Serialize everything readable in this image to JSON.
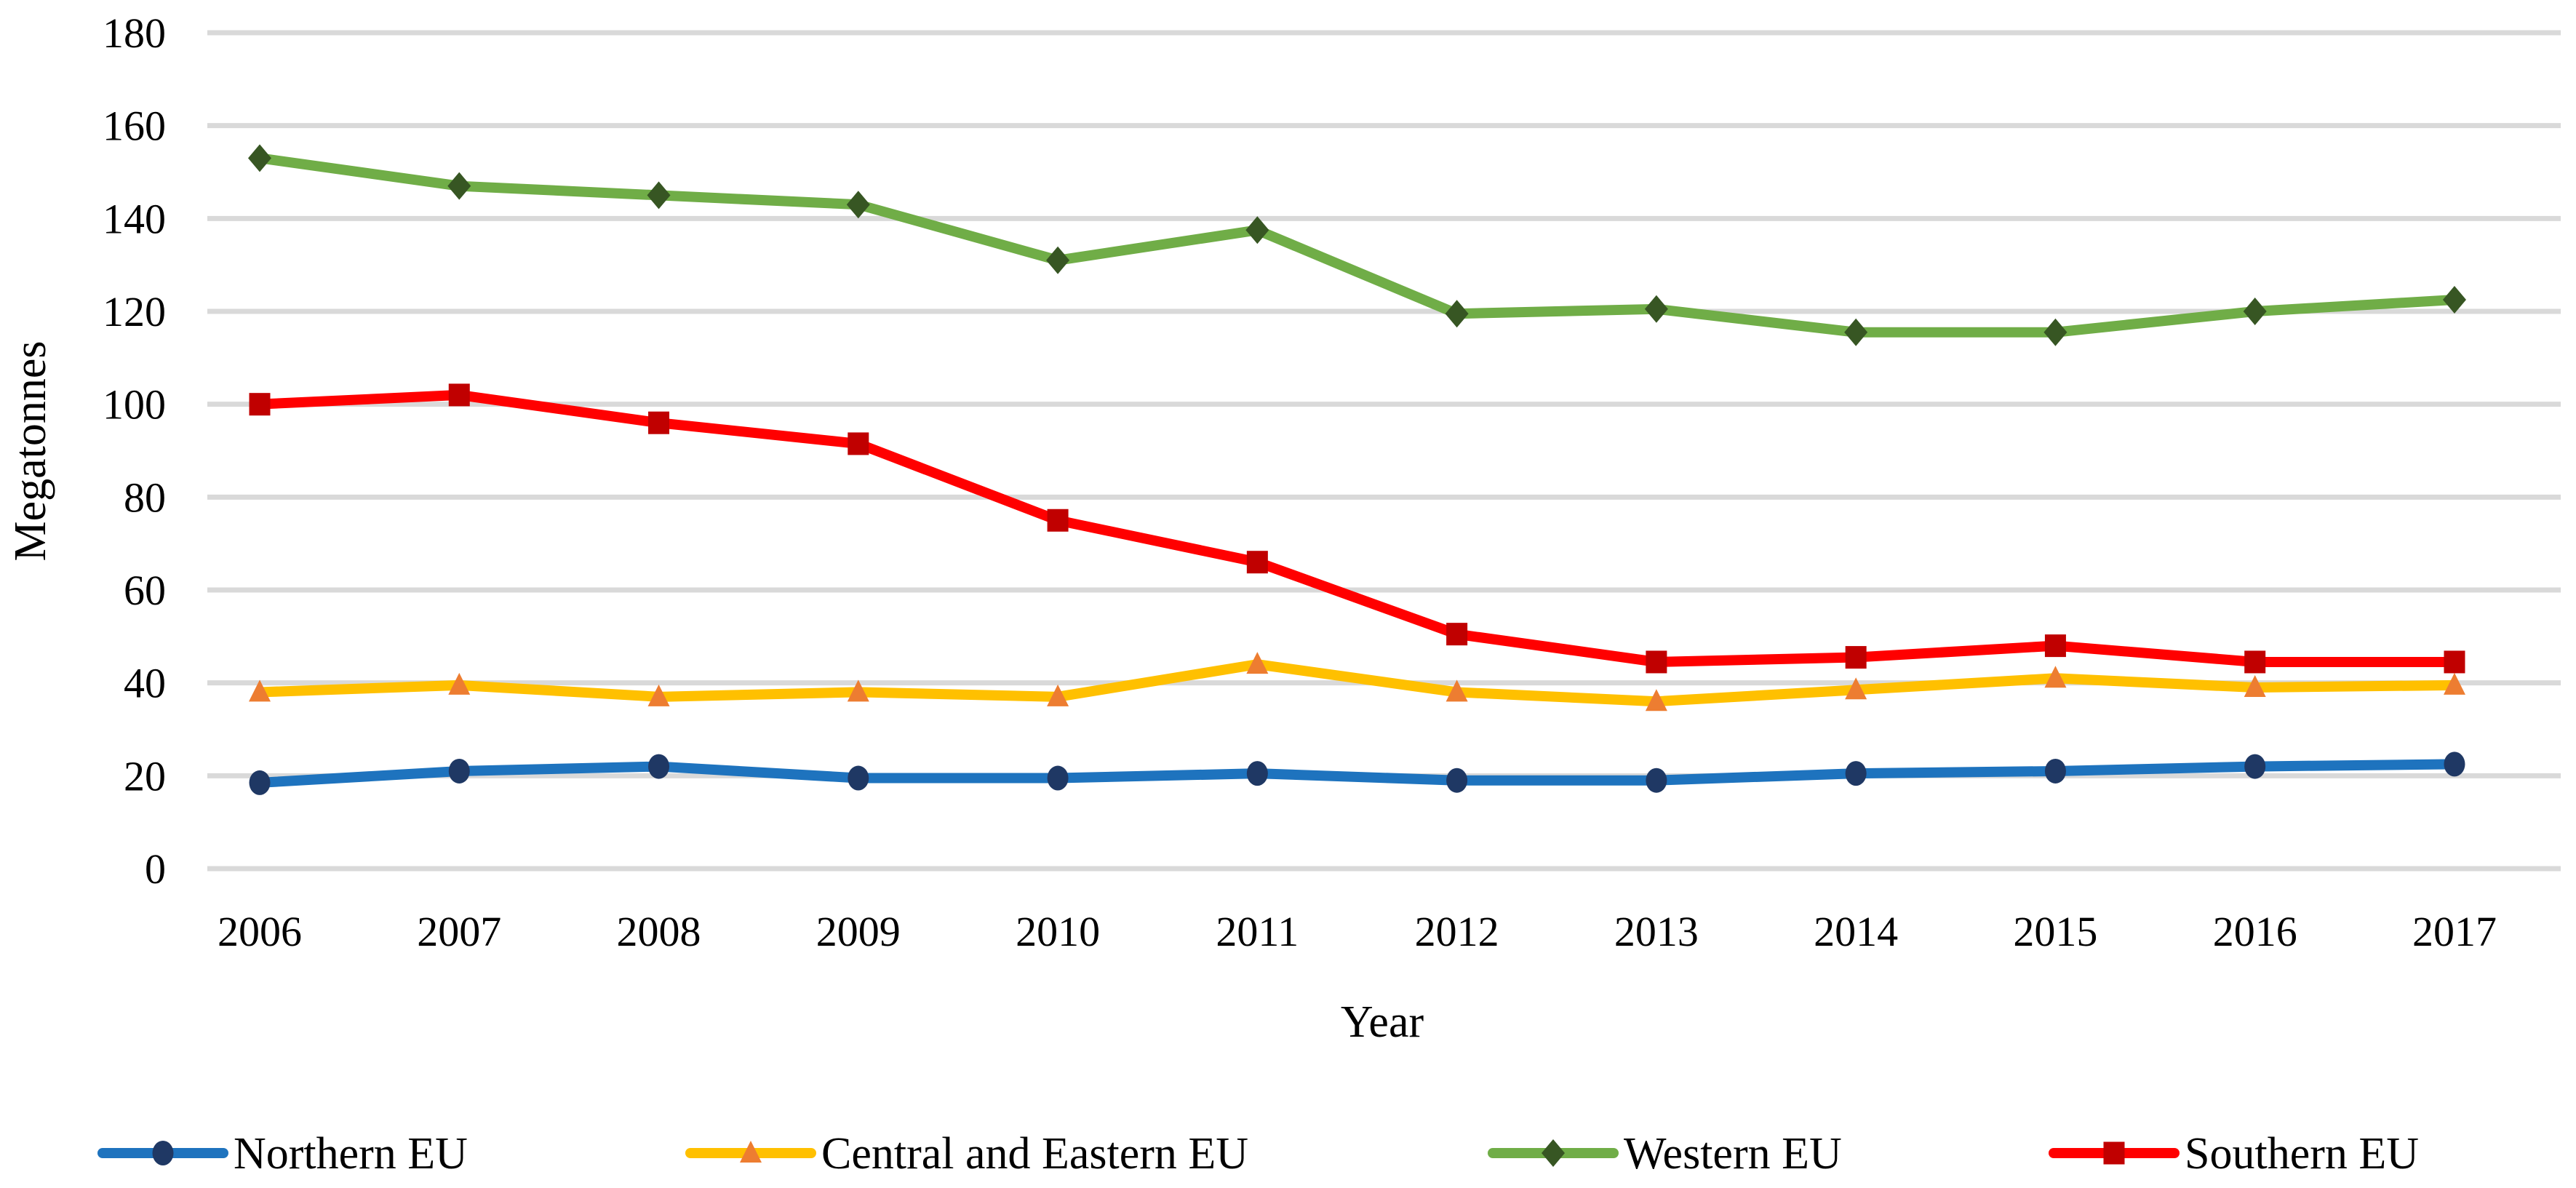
{
  "figure": {
    "description": "Line chart of megatonnes per EU region by year"
  },
  "colors": {
    "background": "#FFFFFF",
    "grid": "#D9D9D9",
    "text": "#000000"
  },
  "chart_data": {
    "type": "line",
    "title": "",
    "x": [
      2006,
      2007,
      2008,
      2009,
      2010,
      2011,
      2012,
      2013,
      2014,
      2015,
      2016,
      2017
    ],
    "xlabel": "Year",
    "ylabel": "Megatonnes",
    "ylim": [
      0,
      180
    ],
    "yticks": [
      0,
      20,
      40,
      60,
      80,
      100,
      120,
      140,
      160,
      180
    ],
    "grid": "horizontal",
    "legend_position": "bottom",
    "series": [
      {
        "name": "Northern EU",
        "marker": "circle",
        "line_color": "#1E73BE",
        "marker_color": "#1F3864",
        "values": [
          18.5,
          21,
          22,
          19.5,
          19.5,
          20.5,
          19,
          19,
          20.5,
          21,
          22,
          22.5
        ]
      },
      {
        "name": "Central and Eastern EU",
        "marker": "triangle",
        "line_color": "#FFC000",
        "marker_color": "#ED7D31",
        "values": [
          38,
          39.5,
          37,
          38,
          37,
          44,
          38,
          36,
          38.5,
          41,
          39,
          39.5
        ]
      },
      {
        "name": "Western EU",
        "marker": "diamond",
        "line_color": "#70AD47",
        "marker_color": "#375623",
        "values": [
          153,
          147,
          145,
          143,
          131,
          137.5,
          119.5,
          120.5,
          115.5,
          115.5,
          120,
          122.5
        ]
      },
      {
        "name": "Southern EU",
        "marker": "square",
        "line_color": "#FF0000",
        "marker_color": "#C00000",
        "values": [
          100,
          102,
          96,
          91.5,
          75,
          66,
          50.5,
          44.5,
          45.5,
          48,
          44.5,
          44.5
        ]
      }
    ]
  }
}
